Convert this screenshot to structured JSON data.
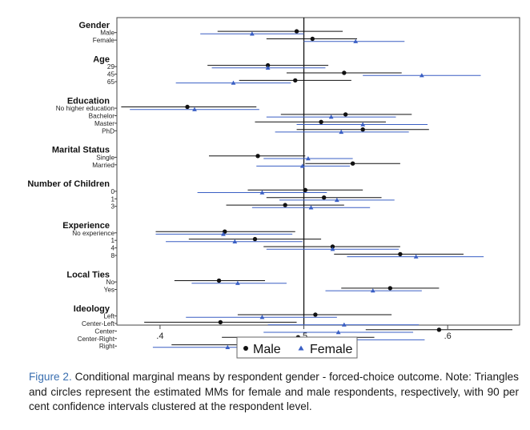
{
  "chart_data": {
    "type": "scatter",
    "subtype": "dot-and-whisker",
    "xlim": [
      0.37,
      0.65
    ],
    "xticks": [
      0.4,
      0.5,
      0.6
    ],
    "xtick_labels": [
      ".4",
      ".5",
      ".6"
    ],
    "reference_line": 0.5,
    "grid": false,
    "legend_position": "bottom",
    "legend": [
      {
        "name": "Male",
        "marker": "circle",
        "color": "#111111"
      },
      {
        "name": "Female",
        "marker": "triangle",
        "color": "#3a5fc4"
      }
    ],
    "groups": [
      {
        "title": "Gender",
        "levels": [
          {
            "label": "Male",
            "male": {
              "est": 0.495,
              "lo": 0.44,
              "hi": 0.527
            },
            "female": {
              "est": 0.464,
              "lo": 0.428,
              "hi": 0.5
            }
          },
          {
            "label": "Female",
            "male": {
              "est": 0.506,
              "lo": 0.474,
              "hi": 0.537
            },
            "female": {
              "est": 0.536,
              "lo": 0.5,
              "hi": 0.57
            }
          }
        ]
      },
      {
        "title": "Age",
        "levels": [
          {
            "label": "29",
            "male": {
              "est": 0.475,
              "lo": 0.433,
              "hi": 0.517
            },
            "female": {
              "est": 0.475,
              "lo": 0.436,
              "hi": 0.515
            }
          },
          {
            "label": "45",
            "male": {
              "est": 0.528,
              "lo": 0.488,
              "hi": 0.568
            },
            "female": {
              "est": 0.582,
              "lo": 0.541,
              "hi": 0.623
            }
          },
          {
            "label": "65",
            "male": {
              "est": 0.494,
              "lo": 0.455,
              "hi": 0.533
            },
            "female": {
              "est": 0.451,
              "lo": 0.411,
              "hi": 0.491
            }
          }
        ]
      },
      {
        "title": "Education",
        "levels": [
          {
            "label": "No higher education",
            "male": {
              "est": 0.419,
              "lo": 0.373,
              "hi": 0.467
            },
            "female": {
              "est": 0.424,
              "lo": 0.379,
              "hi": 0.469
            }
          },
          {
            "label": "Bachelor",
            "male": {
              "est": 0.529,
              "lo": 0.484,
              "hi": 0.575
            },
            "female": {
              "est": 0.519,
              "lo": 0.474,
              "hi": 0.564
            }
          },
          {
            "label": "Master",
            "male": {
              "est": 0.512,
              "lo": 0.466,
              "hi": 0.557
            },
            "female": {
              "est": 0.541,
              "lo": 0.495,
              "hi": 0.586
            }
          },
          {
            "label": "PhD",
            "male": {
              "est": 0.541,
              "lo": 0.495,
              "hi": 0.587
            },
            "female": {
              "est": 0.526,
              "lo": 0.48,
              "hi": 0.573
            }
          }
        ]
      },
      {
        "title": "Marital Status",
        "levels": [
          {
            "label": "Single",
            "male": {
              "est": 0.468,
              "lo": 0.434,
              "hi": 0.501
            },
            "female": {
              "est": 0.503,
              "lo": 0.472,
              "hi": 0.534
            }
          },
          {
            "label": "Married",
            "male": {
              "est": 0.534,
              "lo": 0.501,
              "hi": 0.567
            },
            "female": {
              "est": 0.499,
              "lo": 0.467,
              "hi": 0.532
            }
          }
        ]
      },
      {
        "title": "Number of Children",
        "levels": [
          {
            "label": "0",
            "male": {
              "est": 0.501,
              "lo": 0.461,
              "hi": 0.541
            },
            "female": {
              "est": 0.471,
              "lo": 0.426,
              "hi": 0.516
            }
          },
          {
            "label": "1",
            "male": {
              "est": 0.514,
              "lo": 0.474,
              "hi": 0.554
            },
            "female": {
              "est": 0.523,
              "lo": 0.483,
              "hi": 0.563
            }
          },
          {
            "label": "3",
            "male": {
              "est": 0.487,
              "lo": 0.446,
              "hi": 0.528
            },
            "female": {
              "est": 0.505,
              "lo": 0.464,
              "hi": 0.546
            }
          }
        ]
      },
      {
        "title": "Experience",
        "levels": [
          {
            "label": "No experience",
            "male": {
              "est": 0.445,
              "lo": 0.397,
              "hi": 0.494
            },
            "female": {
              "est": 0.444,
              "lo": 0.397,
              "hi": 0.492
            }
          },
          {
            "label": "1",
            "male": {
              "est": 0.466,
              "lo": 0.42,
              "hi": 0.512
            },
            "female": {
              "est": 0.452,
              "lo": 0.404,
              "hi": 0.499
            }
          },
          {
            "label": "4",
            "male": {
              "est": 0.52,
              "lo": 0.472,
              "hi": 0.567
            },
            "female": {
              "est": 0.52,
              "lo": 0.474,
              "hi": 0.566
            }
          },
          {
            "label": "8",
            "male": {
              "est": 0.567,
              "lo": 0.521,
              "hi": 0.611
            },
            "female": {
              "est": 0.578,
              "lo": 0.53,
              "hi": 0.625
            }
          }
        ]
      },
      {
        "title": "Local Ties",
        "levels": [
          {
            "label": "No",
            "male": {
              "est": 0.441,
              "lo": 0.41,
              "hi": 0.473
            },
            "female": {
              "est": 0.454,
              "lo": 0.422,
              "hi": 0.488
            }
          },
          {
            "label": "Yes",
            "male": {
              "est": 0.56,
              "lo": 0.526,
              "hi": 0.594
            },
            "female": {
              "est": 0.548,
              "lo": 0.515,
              "hi": 0.582
            }
          }
        ]
      },
      {
        "title": "Ideology",
        "levels": [
          {
            "label": "Left",
            "male": {
              "est": 0.508,
              "lo": 0.454,
              "hi": 0.561
            },
            "female": {
              "est": 0.471,
              "lo": 0.418,
              "hi": 0.523
            }
          },
          {
            "label": "Center-Left",
            "male": {
              "est": 0.442,
              "lo": 0.389,
              "hi": 0.495
            },
            "female": {
              "est": 0.528,
              "lo": 0.475,
              "hi": 0.58
            }
          },
          {
            "label": "Center",
            "male": {
              "est": 0.594,
              "lo": 0.543,
              "hi": 0.645
            },
            "female": {
              "est": 0.524,
              "lo": 0.472,
              "hi": 0.576
            }
          },
          {
            "label": "Center-Right",
            "male": {
              "est": 0.496,
              "lo": 0.443,
              "hi": 0.549
            },
            "female": {
              "est": 0.532,
              "lo": 0.48,
              "hi": 0.584
            }
          },
          {
            "label": "Right",
            "male": {
              "est": 0.461,
              "lo": 0.408,
              "hi": 0.514
            },
            "female": {
              "est": 0.447,
              "lo": 0.395,
              "hi": 0.5
            }
          }
        ]
      }
    ]
  },
  "caption": {
    "label": "Figure 2.",
    "text": " Conditional marginal means by respondent gender - forced-choice outcome. Note: Triangles and circles represent the estimated MMs for female and male respondents, respectively, with 90 per cent confidence intervals clustered at the respondent level."
  }
}
